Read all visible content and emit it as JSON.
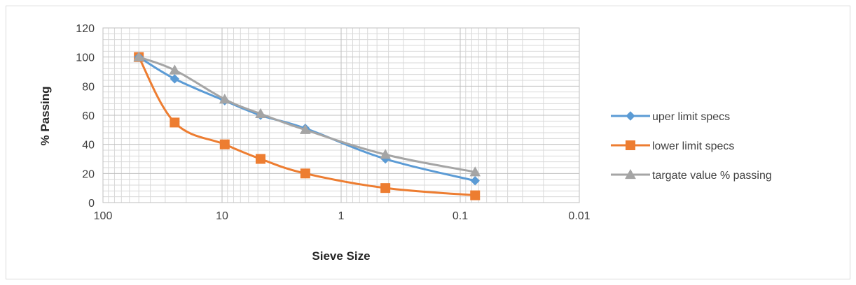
{
  "chart_data": {
    "type": "line",
    "xlabel": "Sieve Size",
    "ylabel": "% Passing",
    "x_scale": "log",
    "x_reversed": true,
    "xlim": [
      100,
      0.01
    ],
    "ylim": [
      0,
      120
    ],
    "x_ticks": [
      "100",
      "10",
      "1",
      "0.1",
      "0.01"
    ],
    "y_ticks": [
      "0",
      "20",
      "40",
      "60",
      "80",
      "100",
      "120"
    ],
    "grid": true,
    "legend_position": "right",
    "series": [
      {
        "name": "uper limit specs",
        "color": "#5b9bd5",
        "marker": "diamond",
        "x": [
          50,
          25,
          9.5,
          4.75,
          2,
          0.425,
          0.075
        ],
        "y": [
          100,
          85,
          70,
          60,
          51,
          30,
          15
        ]
      },
      {
        "name": "lower limit specs",
        "color": "#ed7d31",
        "marker": "square",
        "x": [
          50,
          25,
          9.5,
          4.75,
          2,
          0.425,
          0.075
        ],
        "y": [
          100,
          55,
          40,
          30,
          20,
          10,
          5
        ]
      },
      {
        "name": "targate value % passing",
        "color": "#a5a5a5",
        "marker": "triangle",
        "x": [
          50,
          25,
          9.5,
          4.75,
          2,
          0.425,
          0.075
        ],
        "y": [
          100,
          91,
          71,
          61,
          50,
          33,
          21
        ]
      }
    ]
  }
}
